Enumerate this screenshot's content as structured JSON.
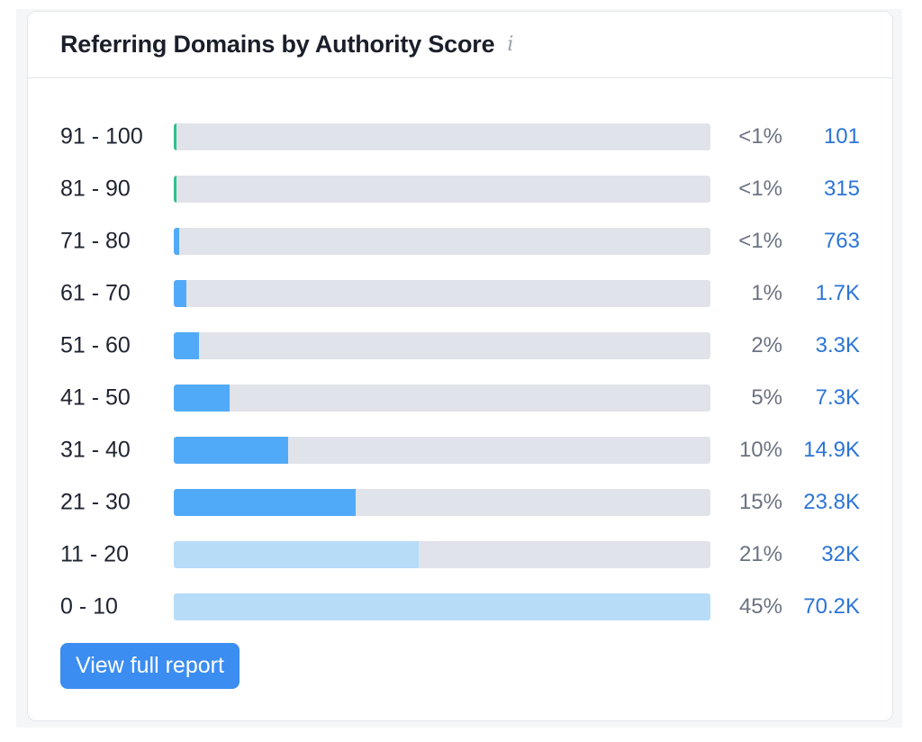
{
  "widget": {
    "title": "Referring Domains by Authority Score",
    "info_icon": "info-icon",
    "button_label": "View full report"
  },
  "colors": {
    "track": "#e1e3ea",
    "green": "#2fbf8a",
    "blue": "#51aaf7",
    "light_blue": "#b6dcf8",
    "count_link": "#2b74d8",
    "button": "#3b8df1"
  },
  "chart_data": {
    "type": "bar",
    "orientation": "horizontal",
    "categories": [
      "91 - 100",
      "81 - 90",
      "71 - 80",
      "61 - 70",
      "51 - 60",
      "41 - 50",
      "31 - 40",
      "21 - 30",
      "11 - 20",
      "0 - 10"
    ],
    "percent_labels": [
      "<1%",
      "<1%",
      "<1%",
      "1%",
      "2%",
      "5%",
      "10%",
      "15%",
      "21%",
      "45%"
    ],
    "count_labels": [
      "101",
      "315",
      "763",
      "1.7K",
      "3.3K",
      "7.3K",
      "14.9K",
      "23.8K",
      "32K",
      "70.2K"
    ],
    "values": [
      101,
      315,
      763,
      1700,
      3300,
      7300,
      14900,
      23800,
      32000,
      70200
    ],
    "bar_colors": [
      "green",
      "green",
      "blue",
      "blue",
      "blue",
      "blue",
      "blue",
      "blue",
      "light_blue",
      "light_blue"
    ]
  }
}
